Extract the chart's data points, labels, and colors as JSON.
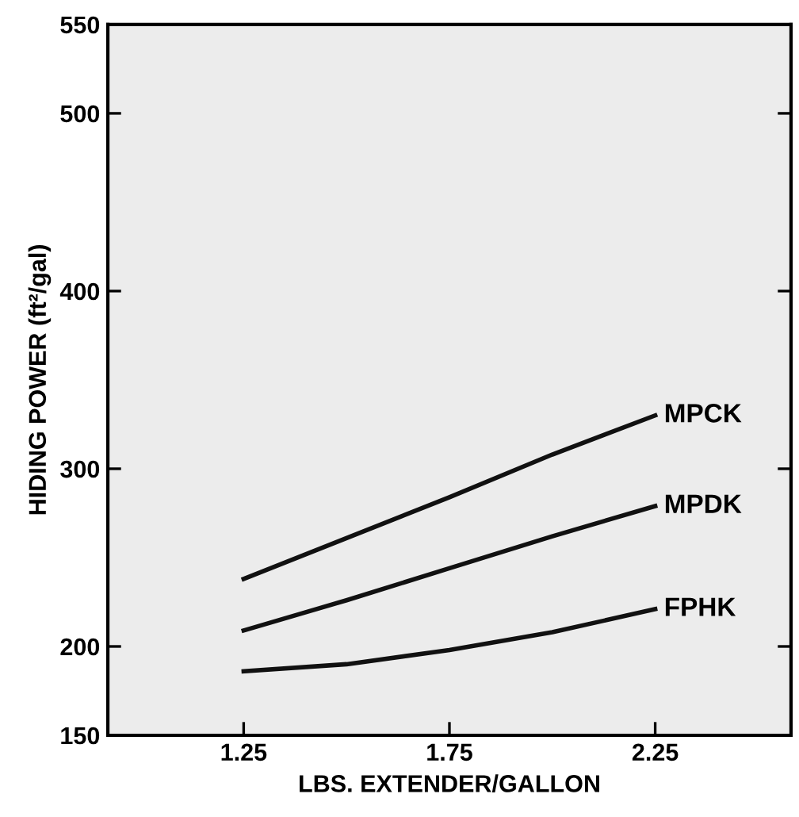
{
  "chart_data": {
    "type": "line",
    "xlabel": "LBS. EXTENDER/GALLON",
    "ylabel": "HIDING POWER (ft²/gal)",
    "x": [
      1.25,
      1.5,
      1.75,
      2.0,
      2.25
    ],
    "series": [
      {
        "name": "MPCK",
        "color": "#111111",
        "values": [
          238,
          261,
          284,
          308,
          330
        ]
      },
      {
        "name": "MPDK",
        "color": "#111111",
        "values": [
          209,
          226,
          244,
          262,
          279
        ]
      },
      {
        "name": "FPHK",
        "color": "#111111",
        "values": [
          186,
          190,
          198,
          208,
          221
        ]
      }
    ],
    "xlim": [
      0.92,
      2.58
    ],
    "xticks": [
      1.25,
      1.75,
      2.25
    ],
    "ylim": [
      150,
      550
    ],
    "yticks": [
      150,
      200,
      300,
      400,
      500,
      550
    ],
    "grid": false,
    "legend": false,
    "marker": "none",
    "line_style": "solid"
  }
}
